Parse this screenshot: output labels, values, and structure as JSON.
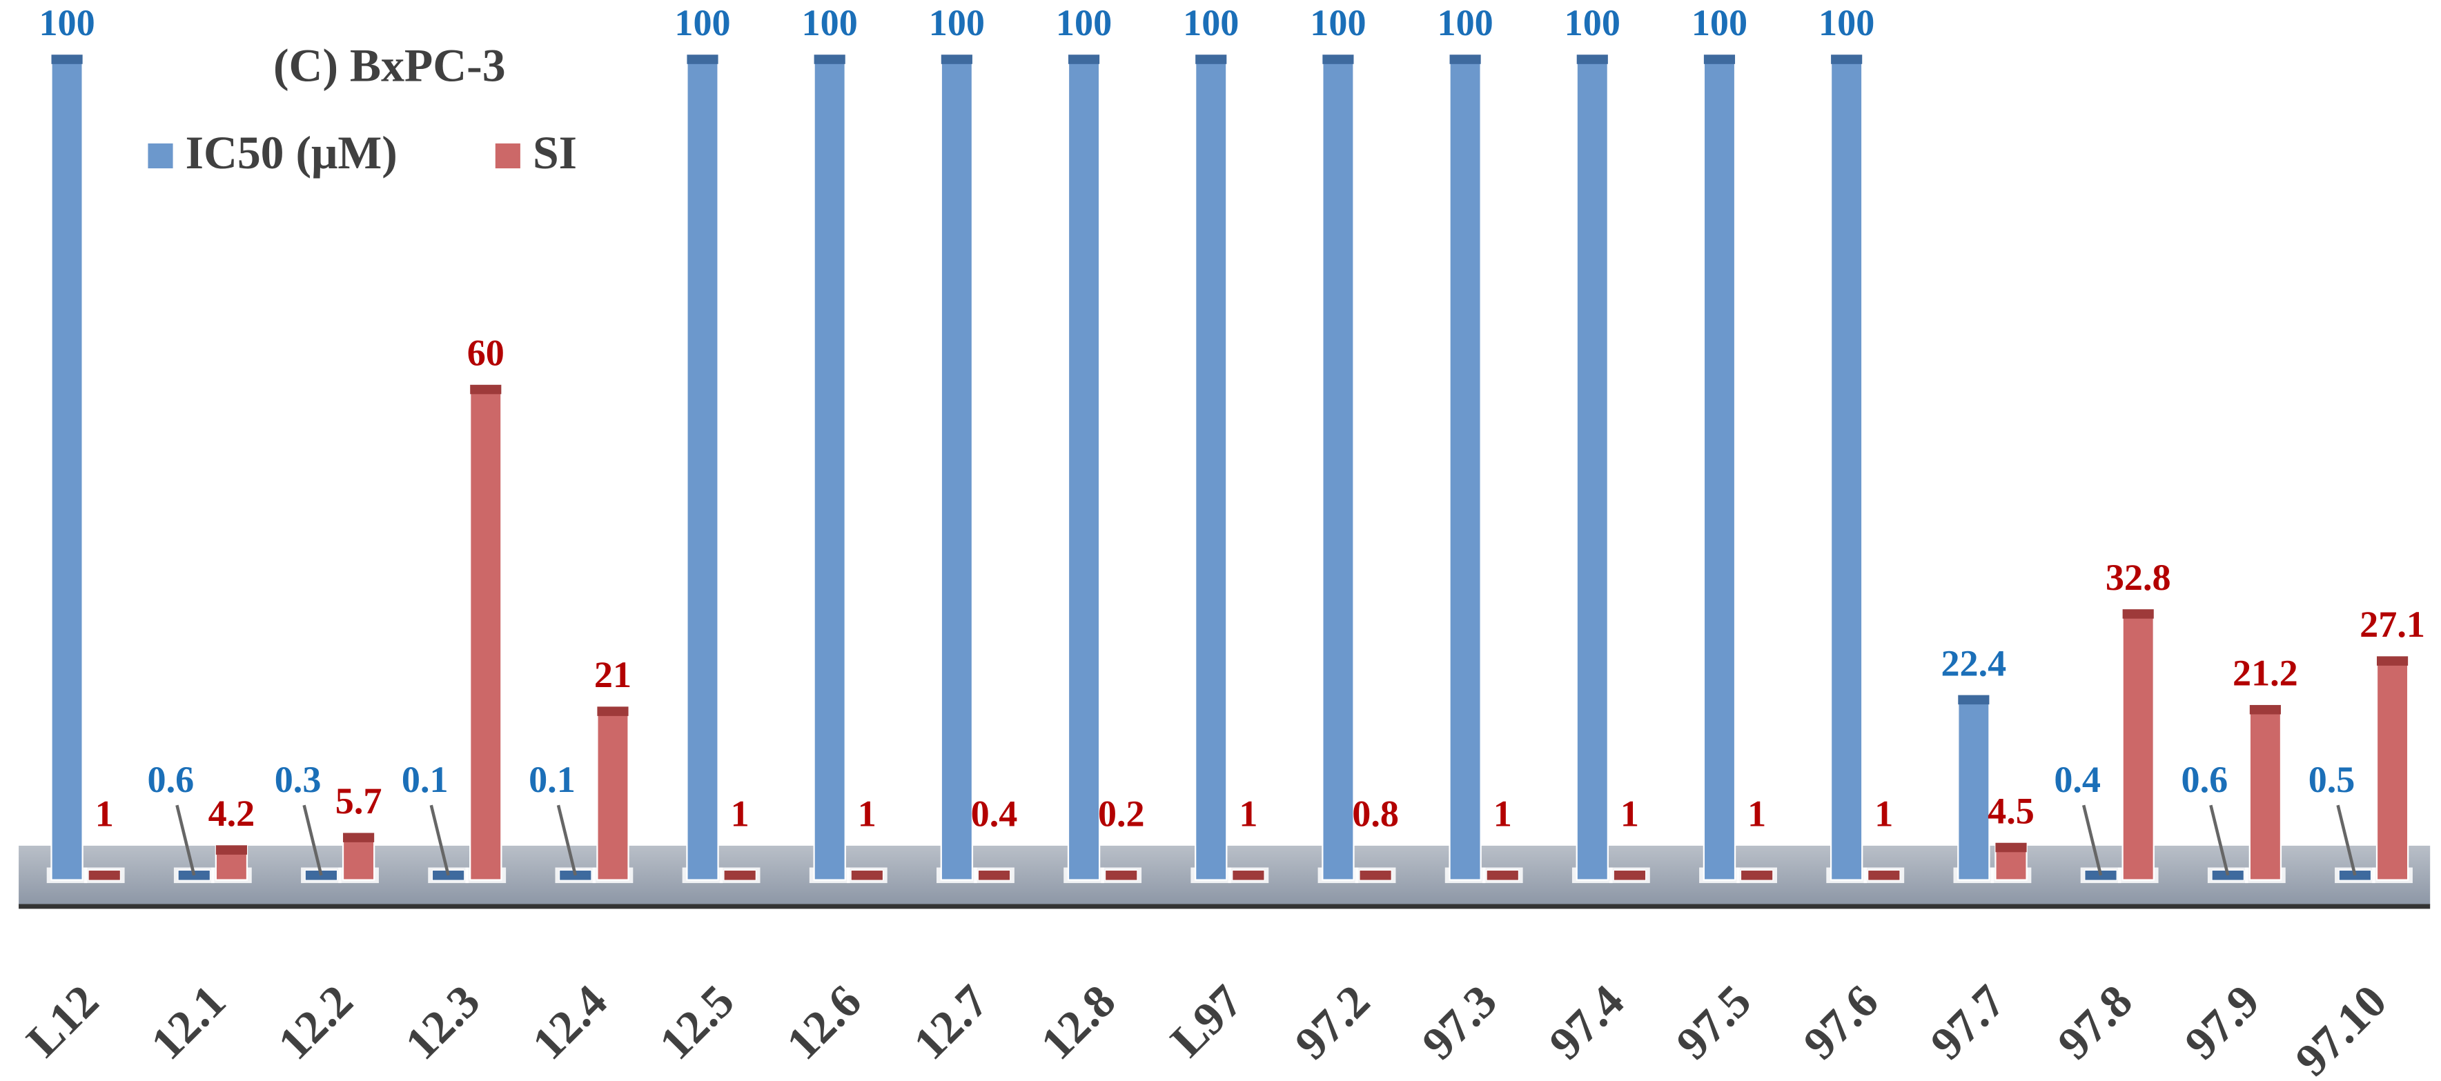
{
  "chart_data": {
    "type": "bar",
    "title": "(C)   BxPC-3",
    "categories": [
      "L12",
      "12.1",
      "12.2",
      "12.3",
      "12.4",
      "12.5",
      "12.6",
      "12.7",
      "12.8",
      "L97",
      "97.2",
      "97.3",
      "97.4",
      "97.5",
      "97.6",
      "97.7",
      "97.8",
      "97.9",
      "97.10"
    ],
    "series": [
      {
        "name": "IC50 (μM)",
        "color": "#6c98cc",
        "label_color": "#1b6fb8",
        "values": [
          100,
          0.6,
          0.3,
          0.1,
          0.1,
          100,
          100,
          100,
          100,
          100,
          100,
          100,
          100,
          100,
          100,
          22.4,
          0.4,
          0.6,
          0.5
        ]
      },
      {
        "name": "SI",
        "color": "#cc6868",
        "label_color": "#b30000",
        "values": [
          1,
          4.2,
          5.7,
          60,
          21,
          1,
          1,
          0.4,
          0.2,
          1,
          0.8,
          1,
          1,
          1,
          1,
          4.5,
          32.8,
          21.2,
          27.1
        ]
      }
    ]
  }
}
